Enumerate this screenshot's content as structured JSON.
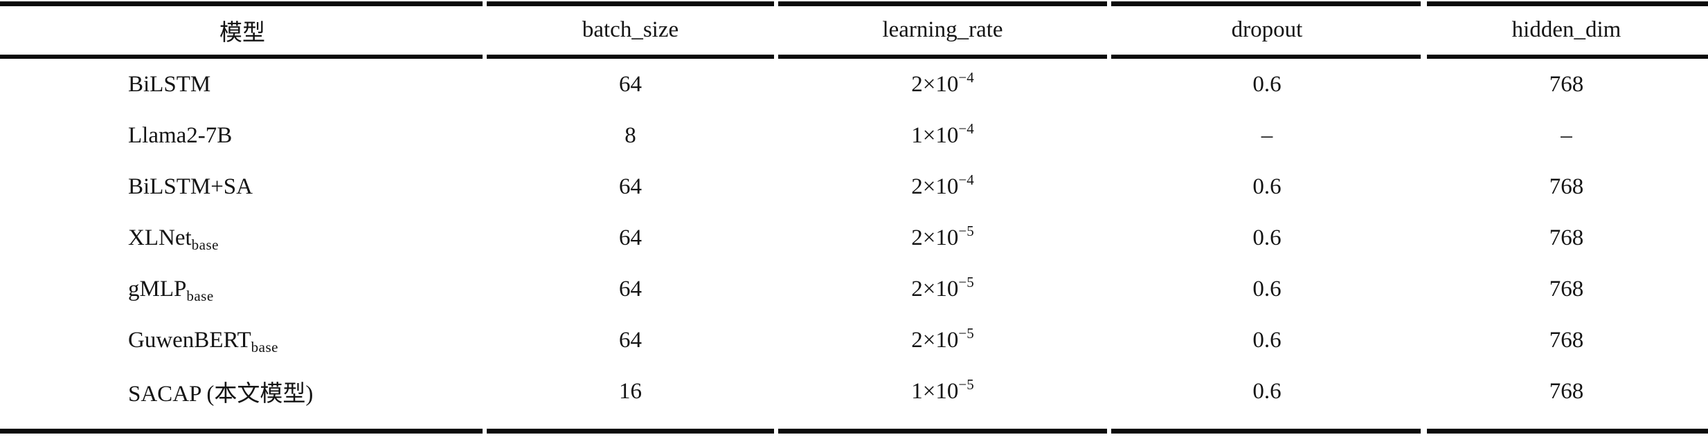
{
  "table": {
    "headers": {
      "model": "模型",
      "batch_size": "batch_size",
      "learning_rate": "learning_rate",
      "dropout": "dropout",
      "hidden_dim": "hidden_dim"
    },
    "rows": [
      {
        "model": "BiLSTM",
        "model_sub": "",
        "batch_size": "64",
        "lr_base": "2×10",
        "lr_exp": "−4",
        "dropout": "0.6",
        "hidden_dim": "768"
      },
      {
        "model": "Llama2-7B",
        "model_sub": "",
        "batch_size": "8",
        "lr_base": "1×10",
        "lr_exp": "−4",
        "dropout": "–",
        "hidden_dim": "–"
      },
      {
        "model": "BiLSTM+SA",
        "model_sub": "",
        "batch_size": "64",
        "lr_base": "2×10",
        "lr_exp": "−4",
        "dropout": "0.6",
        "hidden_dim": "768"
      },
      {
        "model": "XLNet",
        "model_sub": "base",
        "batch_size": "64",
        "lr_base": "2×10",
        "lr_exp": "−5",
        "dropout": "0.6",
        "hidden_dim": "768"
      },
      {
        "model": "gMLP",
        "model_sub": "base",
        "batch_size": "64",
        "lr_base": "2×10",
        "lr_exp": "−5",
        "dropout": "0.6",
        "hidden_dim": "768"
      },
      {
        "model": "GuwenBERT",
        "model_sub": "base",
        "batch_size": "64",
        "lr_base": "2×10",
        "lr_exp": "−5",
        "dropout": "0.6",
        "hidden_dim": "768"
      },
      {
        "model": "SACAP (本文模型)",
        "model_sub": "",
        "batch_size": "16",
        "lr_base": "1×10",
        "lr_exp": "−5",
        "dropout": "0.6",
        "hidden_dim": "768"
      }
    ],
    "colors": {
      "background": "#ffffff",
      "text": "#141414",
      "rule": "#0a0a0a"
    }
  }
}
